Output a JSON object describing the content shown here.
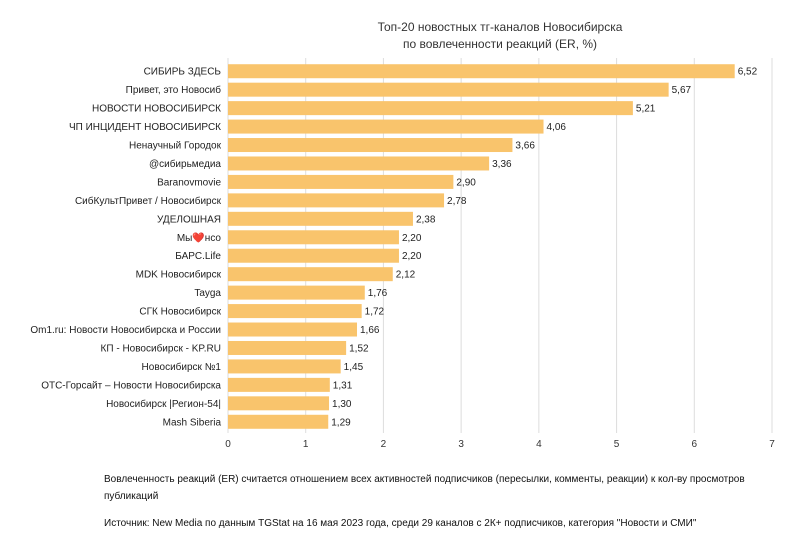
{
  "chart_data": {
    "type": "bar",
    "orientation": "horizontal",
    "title": [
      "Топ-20 новостных тг-каналов Новосибирска",
      "по вовлеченности реакций (ER, %)"
    ],
    "categories": [
      "СИБИРЬ ЗДЕСЬ",
      "Привет, это Новосиб",
      "НОВОСТИ НОВОСИБИРСК",
      "ЧП ИНЦИДЕНТ НОВОСИБИРСК",
      "Ненаучный Городок",
      "@сибирьмедиа",
      "Baranovmovie",
      "СибКультПривет / Новосибирск",
      "УДЕЛОШНАЯ",
      "Мы❤️нсо",
      "БАРС.Life",
      "MDK Новосибирск",
      "Tayga",
      "СГК Новосибирск",
      "Om1.ru: Новости Новосибирска и России",
      "КП - Новосибирск - KP.RU",
      "Новосибирск №1",
      "ОТС-Горсайт – Новости Новосибирска",
      "Новосибирск |Регион-54|",
      "Mash Siberia"
    ],
    "values": [
      6.52,
      5.67,
      5.21,
      4.06,
      3.66,
      3.36,
      2.9,
      2.78,
      2.38,
      2.2,
      2.2,
      2.12,
      1.76,
      1.72,
      1.66,
      1.52,
      1.45,
      1.31,
      1.3,
      1.29
    ],
    "value_labels": [
      "6,52",
      "5,67",
      "5,21",
      "4,06",
      "3,66",
      "3,36",
      "2,90",
      "2,78",
      "2,38",
      "2,20",
      "2,20",
      "2,12",
      "1,76",
      "1,72",
      "1,66",
      "1,52",
      "1,45",
      "1,31",
      "1,30",
      "1,29"
    ],
    "xlim": [
      0,
      7
    ],
    "xticks": [
      "0",
      "1",
      "2",
      "3",
      "4",
      "5",
      "6",
      "7"
    ],
    "grid": true,
    "bar_color": "#F9C46C",
    "grid_color": "#DDDDDD"
  },
  "footnote": {
    "note": "Вовлеченность реакций (ER) считается отношением всех активностей подписчиков (пересылки, комменты, реакции) к кол-ву просмотров публикаций",
    "source": "Источник: New Media по данным TGStat на 16 мая 2023 года, среди 29 каналов с 2К+ подписчиков, категория \"Новости и СМИ\""
  }
}
